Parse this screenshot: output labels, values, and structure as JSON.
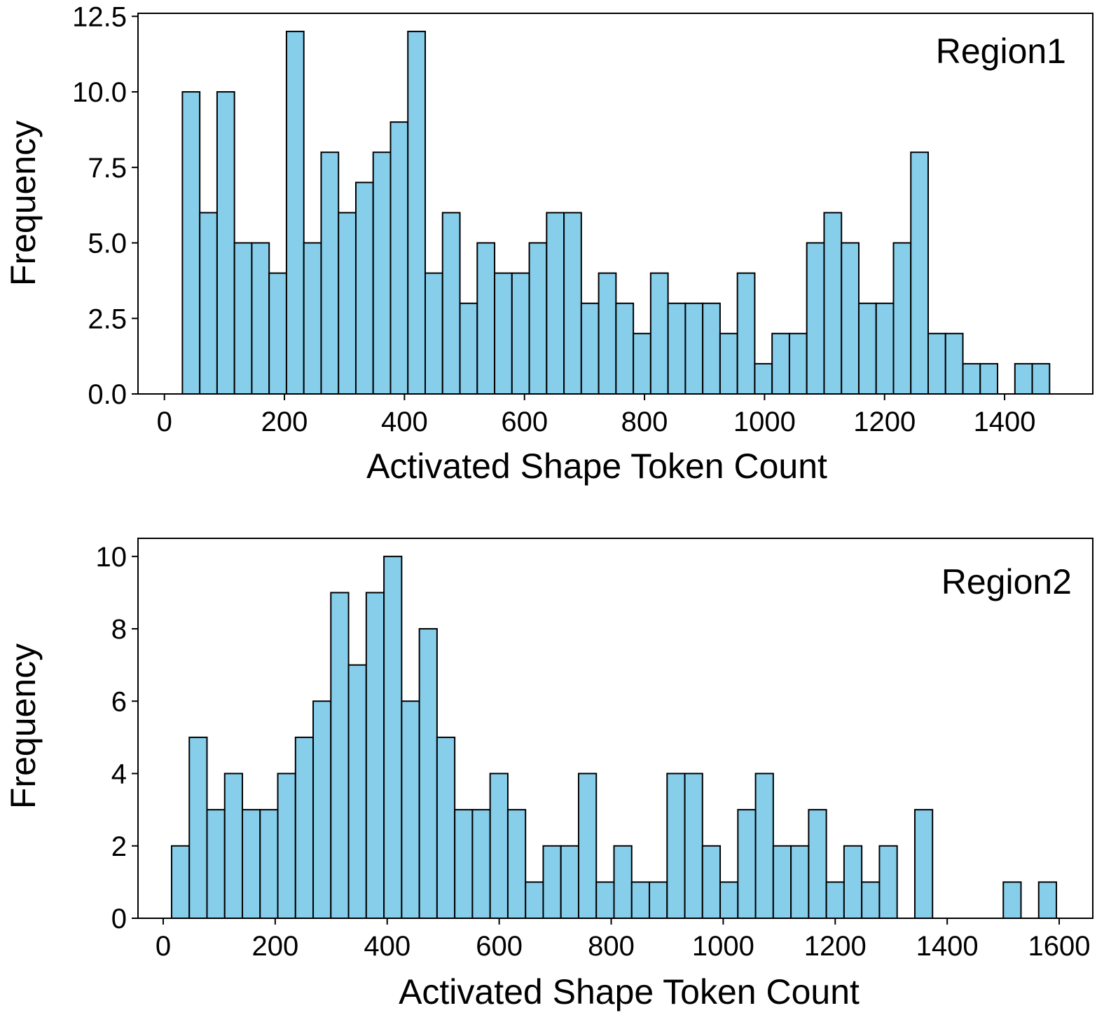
{
  "chart_data": [
    {
      "type": "bar",
      "subtype": "histogram",
      "annotation": "Region1",
      "xlabel": "Activated Shape Token Count",
      "ylabel": "Frequency",
      "xlim": [
        -44,
        1547
      ],
      "ylim": [
        0,
        12.6
      ],
      "xticks": [
        0,
        200,
        400,
        600,
        800,
        1000,
        1200,
        1400
      ],
      "yticks": [
        0,
        2.5,
        5.0,
        7.5,
        10.0,
        12.5
      ],
      "xtick_labels": [
        "0",
        "200",
        "400",
        "600",
        "800",
        "1000",
        "1200",
        "1400"
      ],
      "ytick_labels": [
        "0.0",
        "2.5",
        "5.0",
        "7.5",
        "10.0",
        "12.5"
      ],
      "bin_start": 30,
      "bin_width": 28.9,
      "values": [
        10,
        6,
        10,
        5,
        5,
        4,
        12,
        5,
        8,
        6,
        7,
        8,
        9,
        12,
        4,
        6,
        3,
        5,
        4,
        4,
        5,
        6,
        6,
        3,
        4,
        3,
        2,
        4,
        3,
        3,
        3,
        2,
        4,
        1,
        2,
        2,
        5,
        6,
        5,
        3,
        3,
        5,
        8,
        2,
        2,
        1,
        1,
        0,
        1,
        1
      ],
      "bar_color": "#87CEEB",
      "edge_color": "#000000",
      "grid": false
    },
    {
      "type": "bar",
      "subtype": "histogram",
      "annotation": "Region2",
      "xlabel": "Activated Shape Token Count",
      "ylabel": "Frequency",
      "xlim": [
        -45,
        1660
      ],
      "ylim": [
        0,
        10.5
      ],
      "xticks": [
        0,
        200,
        400,
        600,
        800,
        1000,
        1200,
        1400,
        1600
      ],
      "yticks": [
        0,
        2,
        4,
        6,
        8,
        10
      ],
      "xtick_labels": [
        "0",
        "200",
        "400",
        "600",
        "800",
        "1000",
        "1200",
        "1400",
        "1600"
      ],
      "ytick_labels": [
        "0",
        "2",
        "4",
        "6",
        "8",
        "10"
      ],
      "bin_start": 15,
      "bin_width": 31.6,
      "values": [
        2,
        5,
        3,
        4,
        3,
        3,
        4,
        5,
        6,
        9,
        7,
        9,
        10,
        6,
        8,
        5,
        3,
        3,
        4,
        3,
        1,
        2,
        2,
        4,
        1,
        2,
        1,
        1,
        4,
        4,
        2,
        1,
        3,
        4,
        2,
        2,
        3,
        1,
        2,
        1,
        2,
        0,
        3,
        0,
        0,
        0,
        0,
        1,
        0,
        1
      ],
      "bar_color": "#87CEEB",
      "edge_color": "#000000",
      "grid": false
    }
  ]
}
